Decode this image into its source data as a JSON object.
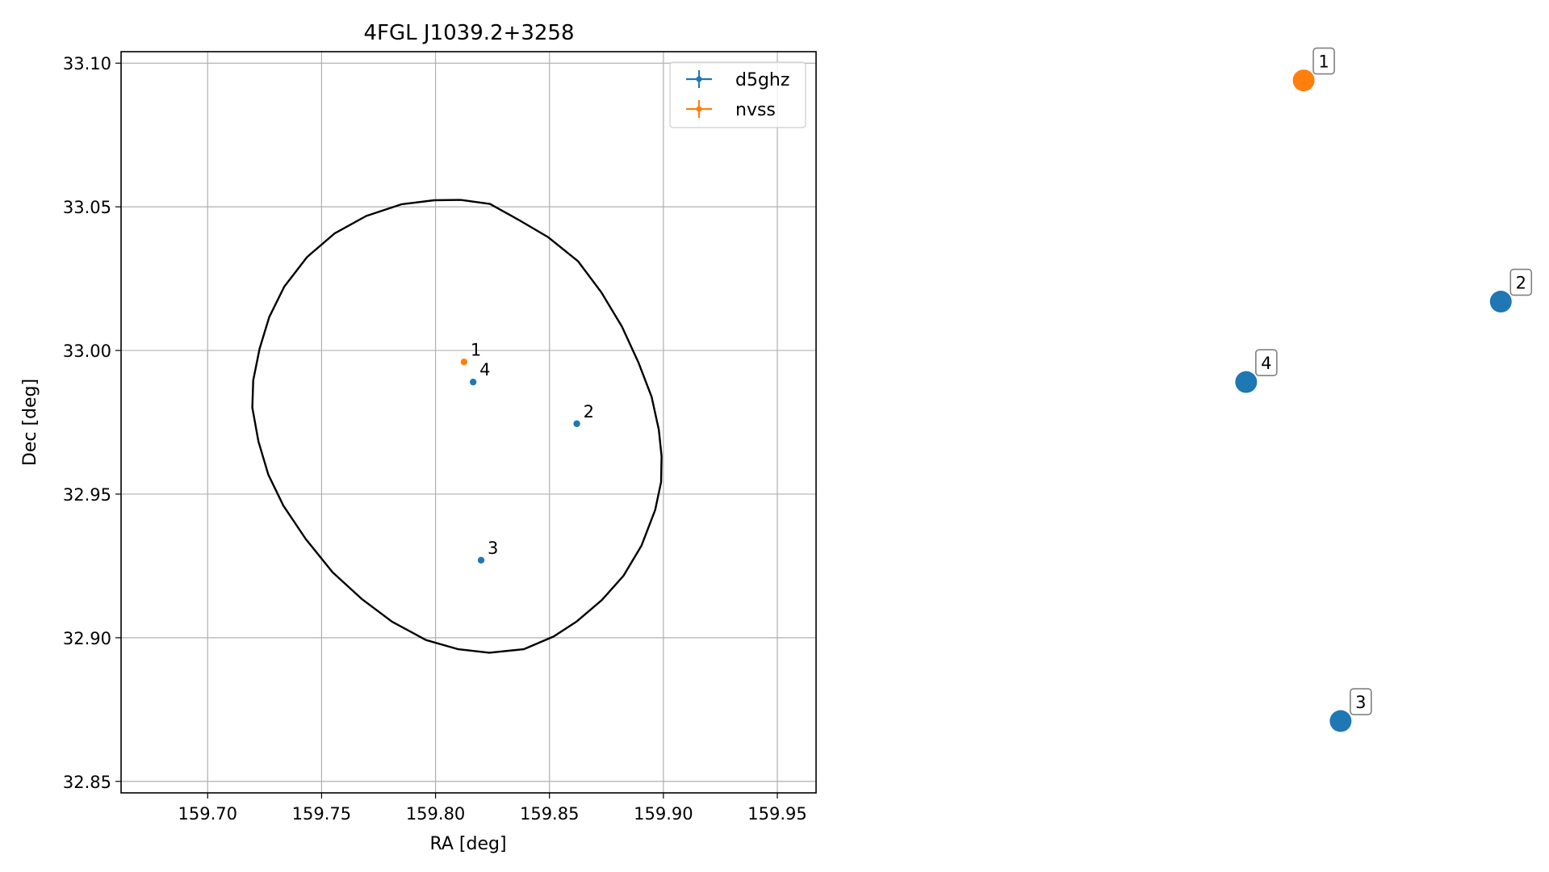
{
  "chart_data": [
    {
      "type": "scatter",
      "title": "4FGL J1039.2+3258",
      "xlabel": "RA [deg]",
      "ylabel": "Dec [deg]",
      "xlim": [
        159.662,
        159.967
      ],
      "ylim": [
        32.846,
        33.104
      ],
      "xticks": [
        "159.70",
        "159.75",
        "159.80",
        "159.85",
        "159.90",
        "159.95"
      ],
      "xtick_values": [
        159.7,
        159.75,
        159.8,
        159.85,
        159.9,
        159.95
      ],
      "yticks": [
        "32.85",
        "32.90",
        "32.95",
        "33.00",
        "33.05",
        "33.10"
      ],
      "ytick_values": [
        32.85,
        32.9,
        32.95,
        33.0,
        33.05,
        33.1
      ],
      "grid": true,
      "legend_position": "top-right",
      "legend": [
        "d5ghz",
        "nvss"
      ],
      "series": [
        {
          "name": "d5ghz",
          "color": "#1f77b4",
          "points": [
            {
              "label": "2",
              "x": 159.862,
              "y": 32.9745
            },
            {
              "label": "3",
              "x": 159.82,
              "y": 32.927
            },
            {
              "label": "4",
              "x": 159.8165,
              "y": 32.989
            }
          ]
        },
        {
          "name": "nvss",
          "color": "#ff7f0e",
          "points": [
            {
              "label": "1",
              "x": 159.8125,
              "y": 32.996
            }
          ]
        }
      ],
      "error_ellipse": {
        "color": "#000000",
        "points": [
          [
            159.811,
            33.0524
          ],
          [
            159.8239,
            33.051
          ],
          [
            159.8366,
            33.0454
          ],
          [
            159.8495,
            33.0394
          ],
          [
            159.8625,
            33.0311
          ],
          [
            159.8727,
            33.0203
          ],
          [
            159.8818,
            33.0083
          ],
          [
            159.889,
            32.9959
          ],
          [
            159.8948,
            32.9839
          ],
          [
            159.898,
            32.9724
          ],
          [
            159.8992,
            32.9631
          ],
          [
            159.899,
            32.9542
          ],
          [
            159.8964,
            32.9445
          ],
          [
            159.8904,
            32.9321
          ],
          [
            159.8825,
            32.9216
          ],
          [
            159.873,
            32.9131
          ],
          [
            159.862,
            32.9057
          ],
          [
            159.8518,
            32.9004
          ],
          [
            159.8387,
            32.896
          ],
          [
            159.8236,
            32.8948
          ],
          [
            159.81,
            32.896
          ],
          [
            159.7958,
            32.8992
          ],
          [
            159.7809,
            32.9056
          ],
          [
            159.7676,
            32.9135
          ],
          [
            159.7548,
            32.9228
          ],
          [
            159.743,
            32.9344
          ],
          [
            159.7332,
            32.946
          ],
          [
            159.7266,
            32.9568
          ],
          [
            159.7223,
            32.9683
          ],
          [
            159.7196,
            32.9801
          ],
          [
            159.72,
            32.9896
          ],
          [
            159.7228,
            33.0006
          ],
          [
            159.727,
            33.0116
          ],
          [
            159.7336,
            33.0222
          ],
          [
            159.7436,
            33.0325
          ],
          [
            159.7558,
            33.0408
          ],
          [
            159.7696,
            33.0468
          ],
          [
            159.7852,
            33.0509
          ],
          [
            159.7994,
            33.0523
          ],
          [
            159.811,
            33.0524
          ]
        ]
      }
    },
    {
      "type": "scatter",
      "title": "",
      "axes_visible": false,
      "xlim": [
        159.662,
        159.967
      ],
      "ylim": [
        32.846,
        33.104
      ],
      "series": [
        {
          "name": "d5ghz",
          "color": "#1f77b4",
          "points": [
            {
              "label": "2",
              "x": 159.951,
              "y": 33.017
            },
            {
              "label": "3",
              "x": 159.873,
              "y": 32.871
            },
            {
              "label": "4",
              "x": 159.827,
              "y": 32.989
            }
          ]
        },
        {
          "name": "nvss",
          "color": "#ff7f0e",
          "points": [
            {
              "label": "1",
              "x": 159.855,
              "y": 33.094
            }
          ]
        }
      ]
    }
  ]
}
